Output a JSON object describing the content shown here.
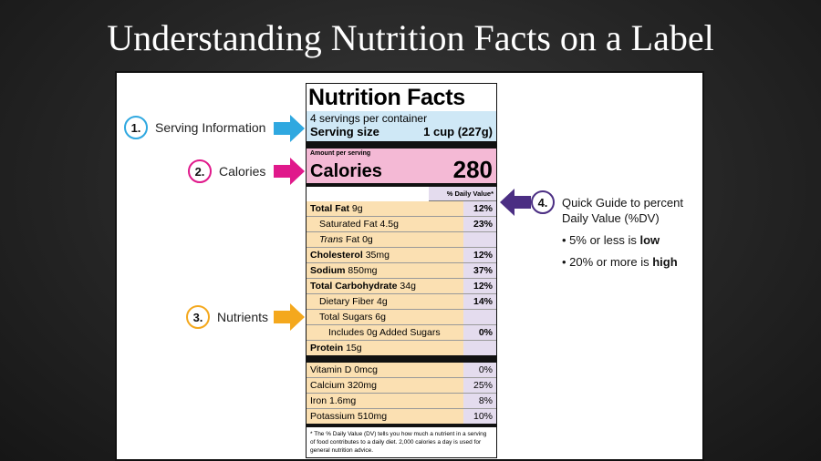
{
  "slide": {
    "title": "Understanding Nutrition Facts on a Label"
  },
  "callouts": [
    {
      "number": "1.",
      "label": "Serving Information",
      "color": "#2fa8e0"
    },
    {
      "number": "2.",
      "label": "Calories",
      "color": "#e0198b"
    },
    {
      "number": "3.",
      "label": "Nutrients",
      "color": "#f4a81d"
    },
    {
      "number": "4.",
      "color": "#4b2e83"
    }
  ],
  "guide": {
    "title": "Quick Guide to percent Daily Value (%DV)",
    "items": [
      {
        "prefix": "• 5% or less is ",
        "emphasis": "low"
      },
      {
        "prefix": "• 20% or more is ",
        "emphasis": "high"
      }
    ]
  },
  "label": {
    "title": "Nutrition Facts",
    "servings_per_container": "4 servings per container",
    "serving_size_label": "Serving size",
    "serving_size_value": "1 cup (227g)",
    "amount_per_serving": "Amount per serving",
    "calories_label": "Calories",
    "calories_value": "280",
    "dv_header": "% Daily Value*",
    "nutrients": [
      {
        "name": "Total Fat",
        "amount": "9g",
        "dv": "12%"
      },
      {
        "name": "Saturated Fat",
        "amount": "4.5g",
        "dv": "23%"
      },
      {
        "name_italic": "Trans",
        "name": "Fat",
        "amount": "0g",
        "dv": ""
      },
      {
        "name": "Cholesterol",
        "amount": "35mg",
        "dv": "12%"
      },
      {
        "name": "Sodium",
        "amount": "850mg",
        "dv": "37%"
      },
      {
        "name": "Total Carbohydrate",
        "amount": "34g",
        "dv": "12%"
      },
      {
        "name": "Dietary Fiber",
        "amount": "4g",
        "dv": "14%"
      },
      {
        "name": "Total Sugars",
        "amount": "6g",
        "dv": ""
      },
      {
        "name": "Includes 0g Added Sugars",
        "dv": "0%"
      },
      {
        "name": "Protein",
        "amount": "15g",
        "dv": ""
      }
    ],
    "vitamins": [
      {
        "name": "Vitamin D",
        "amount": "0mcg",
        "dv": "0%"
      },
      {
        "name": "Calcium",
        "amount": "320mg",
        "dv": "25%"
      },
      {
        "name": "Iron",
        "amount": "1.6mg",
        "dv": "8%"
      },
      {
        "name": "Potassium",
        "amount": "510mg",
        "dv": "10%"
      }
    ],
    "footnote": "* The % Daily Value (DV) tells you how much a nutrient in a serving of food contributes to a daily diet. 2,000 calories a day is used for general nutrition advice."
  }
}
